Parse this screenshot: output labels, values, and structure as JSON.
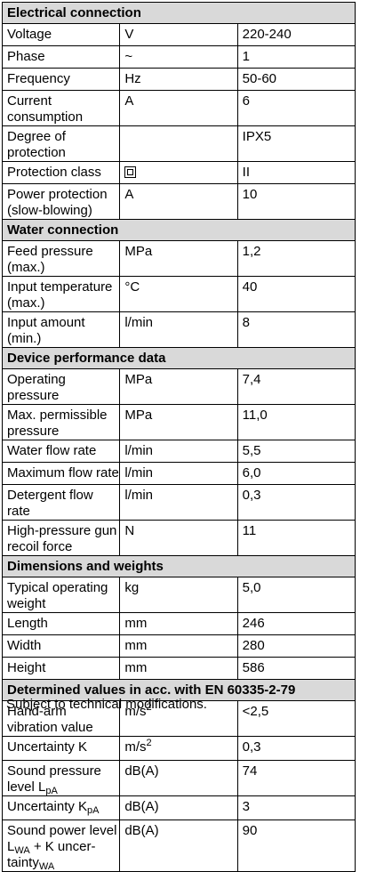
{
  "sections": [
    {
      "title": "Electrical connection",
      "rows": [
        {
          "label": "Voltage",
          "unit": "V",
          "value": "220-240"
        },
        {
          "label": "Phase",
          "unit": "~",
          "value": "1"
        },
        {
          "label": "Frequency",
          "unit": "Hz",
          "value": "50-60"
        },
        {
          "label": "Current consumption",
          "unit": "A",
          "value": "6"
        },
        {
          "label": "Degree of protection",
          "unit": "",
          "value": "IPX5"
        },
        {
          "label": "Protection class",
          "unit_icon": "protection-class-ii-icon",
          "value": "II"
        },
        {
          "label": "Power protection (slow-blowing)",
          "unit": "A",
          "value": "10"
        }
      ]
    },
    {
      "title": "Water connection",
      "rows": [
        {
          "label": "Feed pressure (max.)",
          "unit": "MPa",
          "value": "1,2"
        },
        {
          "label": "Input temperature (max.)",
          "unit": "°C",
          "value": "40"
        },
        {
          "label": "Input amount (min.)",
          "unit": "l/min",
          "value": "8"
        }
      ]
    },
    {
      "title": "Device performance data",
      "rows": [
        {
          "label": "Operating pressure",
          "unit": "MPa",
          "value": "7,4"
        },
        {
          "label": "Max. permissible pressure",
          "unit": "MPa",
          "value": "11,0"
        },
        {
          "label": "Water flow rate",
          "unit": "l/min",
          "value": "5,5"
        },
        {
          "label": "Maximum flow rate",
          "unit": "l/min",
          "value": "6,0"
        },
        {
          "label": "Detergent flow rate",
          "unit": "l/min",
          "value": "0,3"
        },
        {
          "label": "High-pressure gun recoil force",
          "unit": "N",
          "value": "11"
        }
      ]
    },
    {
      "title": "Dimensions and weights",
      "rows": [
        {
          "label": "Typical operating weight",
          "unit": "kg",
          "value": "5,0"
        },
        {
          "label": "Length",
          "unit": "mm",
          "value": "246"
        },
        {
          "label": "Width",
          "unit": "mm",
          "value": "280"
        },
        {
          "label": "Height",
          "unit": "mm",
          "value": "586"
        }
      ]
    },
    {
      "title": "Determined values in acc. with EN 60335-2-79",
      "rows": [
        {
          "label": "Hand-arm vibration value",
          "unit": "m/s",
          "unit_sup": "2",
          "value": "<2,5"
        },
        {
          "label": "Uncertainty K",
          "unit": "m/s",
          "unit_sup": "2",
          "value": "0,3"
        },
        {
          "label": "Sound pressure level L",
          "label_sub": "pA",
          "unit": "dB(A)",
          "value": "74"
        },
        {
          "label": "Uncertainty K",
          "label_sub": "pA",
          "unit": "dB(A)",
          "value": "3"
        },
        {
          "label": "Sound power level L",
          "label_sub": "WA",
          "label_cont": " + K uncer-",
          "label_line2": "tainty",
          "label_line2_sub": "WA",
          "unit": "dB(A)",
          "value": "90"
        }
      ]
    }
  ],
  "footnote": "Subject to technical modifications."
}
